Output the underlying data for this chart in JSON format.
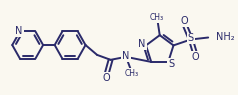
{
  "bg_color": "#faf8f0",
  "bond_color": "#2a2a6a",
  "bond_width": 1.4,
  "font_color": "#2a2a6a",
  "figsize": [
    2.38,
    0.95
  ],
  "dpi": 100,
  "xlim": [
    0,
    238
  ],
  "ylim": [
    0,
    95
  ]
}
